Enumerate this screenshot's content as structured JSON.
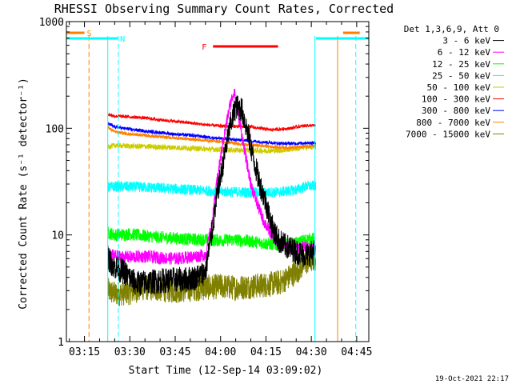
{
  "chart_data": {
    "type": "line",
    "title": "RHESSI Observing Summary Count Rates, Corrected",
    "xlabel": "Start Time (12-Sep-14 03:09:02)",
    "ylabel": "Corrected Count Rate (s⁻¹ detector⁻¹)",
    "x_ticks": [
      "03:15",
      "03:30",
      "03:45",
      "04:00",
      "04:15",
      "04:30",
      "04:45"
    ],
    "x_tick_minutes": [
      15,
      30,
      45,
      60,
      75,
      90,
      105
    ],
    "xlim_minutes": [
      9.03,
      109.0
    ],
    "y_scale": "log",
    "ylim": [
      1,
      1000
    ],
    "y_ticks": [
      1,
      10,
      100,
      1000
    ],
    "y_tick_labels": [
      "1",
      "10",
      "100",
      "1000"
    ],
    "legend_header": "Det 1,3,6,9, Att 0",
    "legend_position": "right",
    "timestamp": "19-Oct-2021 22:17",
    "flags": [
      {
        "label": "S",
        "color": "#ff8000",
        "start": 9.03,
        "end": 15.0,
        "color_bar": "#ff8000"
      },
      {
        "label": "N",
        "color": "#00ffff",
        "start": 9.03,
        "end": 26.0
      },
      {
        "label": "N",
        "color": "#00ffff",
        "start": 91.5,
        "end": 109.0
      },
      {
        "label": "S",
        "color": "#ff8000",
        "start": 100.5,
        "end": 106.0
      },
      {
        "label": "F",
        "color": "#ff0000",
        "start": 57.5,
        "end": 79.0
      }
    ],
    "vertical_markers": [
      {
        "minute": 16.5,
        "color": "#ff8000",
        "style": "dashed"
      },
      {
        "minute": 26.2,
        "color": "#00ffff",
        "style": "dashed"
      },
      {
        "minute": 22.7,
        "color": "#00ffff",
        "style": "solid"
      },
      {
        "minute": 91.2,
        "color": "#00ffff",
        "style": "solid"
      },
      {
        "minute": 98.7,
        "color": "#ff8000",
        "style": "solid"
      },
      {
        "minute": 104.7,
        "color": "#00ffff",
        "style": "dashed"
      }
    ],
    "series": [
      {
        "name": "3 - 6 keV",
        "color": "#000000",
        "noise": 0.12,
        "x": [
          22.8,
          25,
          28,
          32,
          36,
          40,
          44,
          48,
          52,
          55,
          57,
          59,
          61,
          63,
          65,
          67,
          69,
          71,
          73,
          75,
          77,
          79,
          81,
          83,
          85,
          87,
          89,
          91
        ],
        "y": [
          6,
          5,
          4.5,
          3.5,
          3.6,
          3.7,
          3.8,
          3.8,
          4,
          4.5,
          10,
          25,
          50,
          100,
          160,
          150,
          90,
          50,
          30,
          20,
          12,
          9,
          8,
          7.5,
          7,
          6.5,
          6.5,
          7
        ]
      },
      {
        "name": "6 - 12 keV",
        "color": "#ff00ff",
        "noise": 0.06,
        "x": [
          22.8,
          26,
          30,
          35,
          40,
          45,
          50,
          55,
          57,
          59,
          61,
          63,
          64.5,
          66,
          68,
          70,
          72,
          74,
          76,
          78,
          80,
          82,
          84,
          86,
          88,
          90,
          91.5
        ],
        "y": [
          6.5,
          6.3,
          6.2,
          6.3,
          6.1,
          6,
          6.2,
          6.5,
          12,
          35,
          80,
          160,
          225,
          130,
          60,
          30,
          20,
          14,
          11,
          9,
          8,
          7.8,
          7.5,
          7.6,
          7.8,
          7.5,
          7.3
        ]
      },
      {
        "name": "12 - 25 keV",
        "color": "#00ff00",
        "noise": 0.06,
        "x": [
          22.8,
          25,
          30,
          35,
          40,
          45,
          50,
          55,
          60,
          65,
          70,
          75,
          80,
          85,
          88,
          91
        ],
        "y": [
          10.5,
          10,
          10.2,
          9.8,
          9.5,
          9.3,
          9.1,
          9,
          8.9,
          9,
          8.7,
          8.3,
          8,
          8.3,
          9,
          9.2
        ]
      },
      {
        "name": "25 - 50 keV",
        "color": "#00ffff",
        "noise": 0.05,
        "x": [
          22.8,
          25,
          30,
          35,
          40,
          45,
          50,
          55,
          60,
          65,
          70,
          75,
          80,
          85,
          88,
          91.5
        ],
        "y": [
          28,
          28.5,
          28.3,
          28,
          27.5,
          27,
          26.5,
          26,
          25.5,
          25.3,
          25,
          25,
          25.3,
          26.5,
          28.5,
          29
        ]
      },
      {
        "name": "50 - 100 keV",
        "color": "#cccc00",
        "noise": 0.025,
        "x": [
          22.8,
          25,
          30,
          35,
          40,
          45,
          50,
          55,
          60,
          65,
          70,
          75,
          80,
          85,
          88,
          91.5
        ],
        "y": [
          67,
          69,
          68,
          67.5,
          66.5,
          66,
          65,
          64,
          63,
          62.5,
          62,
          61.5,
          62,
          64.5,
          66.5,
          67
        ]
      },
      {
        "name": "100 - 300 keV",
        "color": "#ff0000",
        "noise": 0.015,
        "x": [
          22.8,
          25,
          30,
          35,
          40,
          45,
          50,
          55,
          60,
          65,
          70,
          73,
          76,
          80,
          83,
          86,
          88,
          91.5
        ],
        "y": [
          135,
          130,
          128,
          125,
          120,
          116,
          112,
          108,
          105,
          104,
          103,
          100,
          97,
          98,
          100,
          104,
          106,
          106
        ]
      },
      {
        "name": "300 - 800 keV",
        "color": "#0000ff",
        "noise": 0.015,
        "x": [
          22.8,
          25,
          30,
          35,
          40,
          45,
          50,
          55,
          60,
          65,
          70,
          75,
          80,
          85,
          88,
          91.5
        ],
        "y": [
          110,
          103,
          98,
          94,
          91,
          88,
          86,
          83,
          80,
          78,
          76,
          74,
          72,
          72,
          73,
          73
        ]
      },
      {
        "name": "800 - 7000 keV",
        "color": "#ff8000",
        "noise": 0.015,
        "x": [
          22.8,
          25,
          30,
          35,
          40,
          45,
          50,
          55,
          60,
          65,
          70,
          75,
          80,
          85,
          88,
          91.5
        ],
        "y": [
          102,
          93,
          88,
          86,
          83,
          81,
          79,
          77,
          75,
          72,
          70,
          68,
          66,
          66,
          68,
          68
        ]
      },
      {
        "name": "7000 - 15000 keV",
        "color": "#808000",
        "noise": 0.12,
        "x": [
          22.8,
          25,
          30,
          35,
          40,
          45,
          50,
          55,
          60,
          65,
          70,
          75,
          80,
          85,
          88,
          91.5
        ],
        "y": [
          3.0,
          2.8,
          2.9,
          3.2,
          3.1,
          3.0,
          3.1,
          3.2,
          3.3,
          3.2,
          3.3,
          3.4,
          3.6,
          4.5,
          5.5,
          6.0
        ]
      }
    ]
  }
}
